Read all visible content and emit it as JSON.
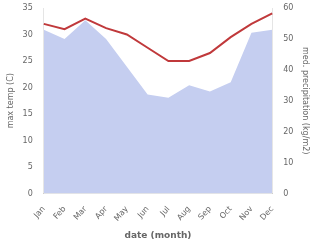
{
  "chart_data": {
    "type": "line",
    "categories": [
      "Jan",
      "Feb",
      "Mar",
      "Apr",
      "May",
      "Jun",
      "Jul",
      "Aug",
      "Sep",
      "Oct",
      "Nov",
      "Dec"
    ],
    "series": [
      {
        "type": "line",
        "color": "#c0393b",
        "values": [
          32.0,
          31.0,
          33.0,
          31.2,
          30.0,
          27.5,
          25.0,
          25.0,
          26.5,
          29.5,
          32.0,
          34.0
        ]
      },
      {
        "type": "area",
        "color": "#c5cef0",
        "axis": "y2",
        "values": [
          53.0,
          50.0,
          56.0,
          50.0,
          41.0,
          32.0,
          31.0,
          35.0,
          33.0,
          36.0,
          52.0,
          53.0
        ]
      }
    ],
    "xlabel": "date (month)",
    "ylabel": "max temp (C)",
    "y2label": "med. precipitation (kg/m2)",
    "ylim": [
      0,
      35
    ],
    "yticks": [
      0,
      5,
      10,
      15,
      20,
      25,
      30,
      35
    ],
    "y2lim": [
      0,
      60
    ],
    "y2ticks": [
      0,
      10,
      20,
      30,
      40,
      50,
      60
    ],
    "grid": false
  }
}
